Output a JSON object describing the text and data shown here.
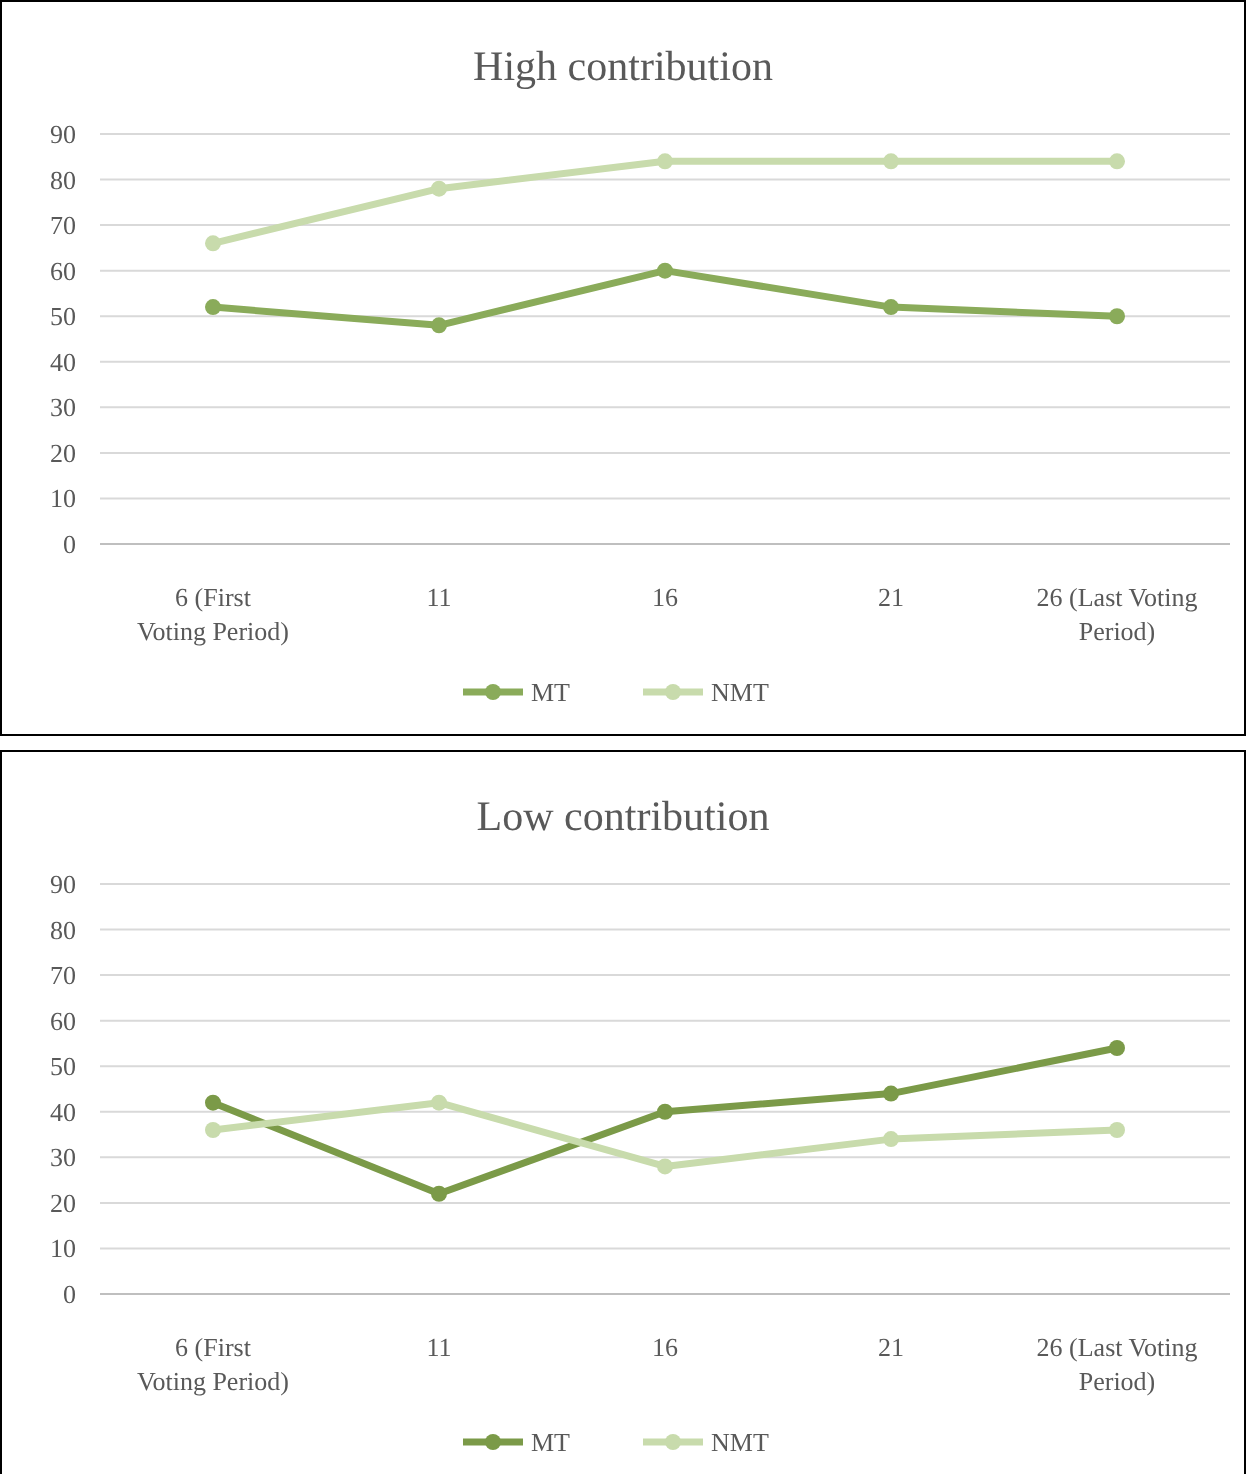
{
  "chart_data": [
    {
      "type": "line",
      "title": "High contribution",
      "categories": [
        "6  (First Voting Period)",
        "11",
        "16",
        "21",
        "26 (Last Voting Period)"
      ],
      "ylim": [
        0,
        90
      ],
      "yticks": [
        0,
        10,
        20,
        30,
        40,
        50,
        60,
        70,
        80,
        90
      ],
      "grid": "y",
      "legend": "bottom",
      "marker": "circle",
      "series": [
        {
          "name": "MT",
          "color": "#8aab5a",
          "values": [
            52,
            48,
            60,
            52,
            50
          ]
        },
        {
          "name": "NMT",
          "color": "#c8dbac",
          "values": [
            66,
            78,
            84,
            84,
            84
          ]
        }
      ]
    },
    {
      "type": "line",
      "title": "Low contribution",
      "categories": [
        "6  (First Voting Period)",
        "11",
        "16",
        "21",
        "26 (Last Voting Period)"
      ],
      "ylim": [
        0,
        90
      ],
      "yticks": [
        0,
        10,
        20,
        30,
        40,
        50,
        60,
        70,
        80,
        90
      ],
      "grid": "y",
      "legend": "bottom",
      "marker": "circle",
      "series": [
        {
          "name": "MT",
          "color": "#7b9a48",
          "values": [
            42,
            22,
            40,
            44,
            54
          ]
        },
        {
          "name": "NMT",
          "color": "#c8dbac",
          "values": [
            36,
            42,
            28,
            34,
            36
          ]
        }
      ]
    }
  ]
}
